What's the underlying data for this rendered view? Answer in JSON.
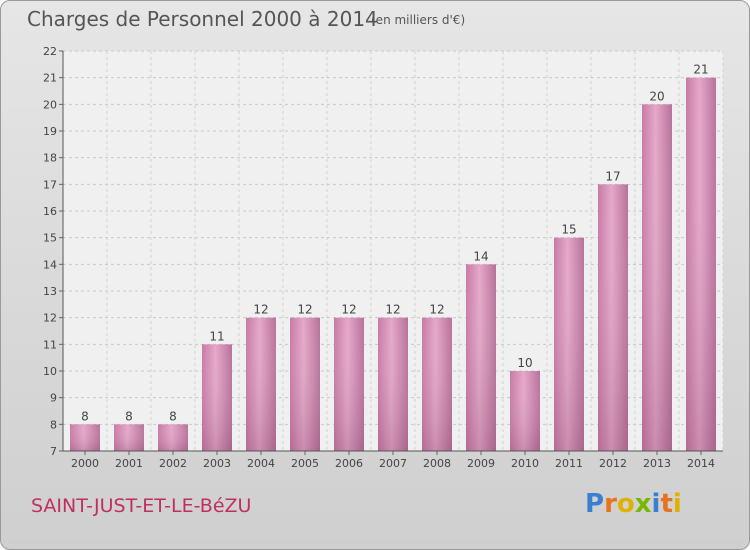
{
  "header": {
    "title": "Charges de Personnel 2000 à 2014",
    "subtitle": "(en milliers d'€)"
  },
  "footer": {
    "commune": "SAINT-JUST-ET-LE-BéZU",
    "brand": "Proxiti",
    "brand_letter_colors": [
      "#3a7fd0",
      "#e8731e",
      "#e0b100",
      "#7ab800",
      "#3a7fd0",
      "#e8731e",
      "#e0b100"
    ]
  },
  "chart_data": {
    "type": "bar",
    "title": "Charges de Personnel 2000 à 2014",
    "subtitle": "(en milliers d'€)",
    "xlabel": "",
    "ylabel": "",
    "categories": [
      "2000",
      "2001",
      "2002",
      "2003",
      "2004",
      "2005",
      "2006",
      "2007",
      "2008",
      "2009",
      "2010",
      "2011",
      "2012",
      "2013",
      "2014"
    ],
    "values": [
      8,
      8,
      8,
      11,
      12,
      12,
      12,
      12,
      12,
      14,
      10,
      15,
      17,
      20,
      21
    ],
    "ylim": [
      7,
      22
    ],
    "yticks": [
      7,
      8,
      9,
      10,
      11,
      12,
      13,
      14,
      15,
      16,
      17,
      18,
      19,
      20,
      21,
      22
    ],
    "grid": true,
    "legend": "none",
    "bar_color": "#d98fb8",
    "bar_color_dark": "#b36a94"
  }
}
